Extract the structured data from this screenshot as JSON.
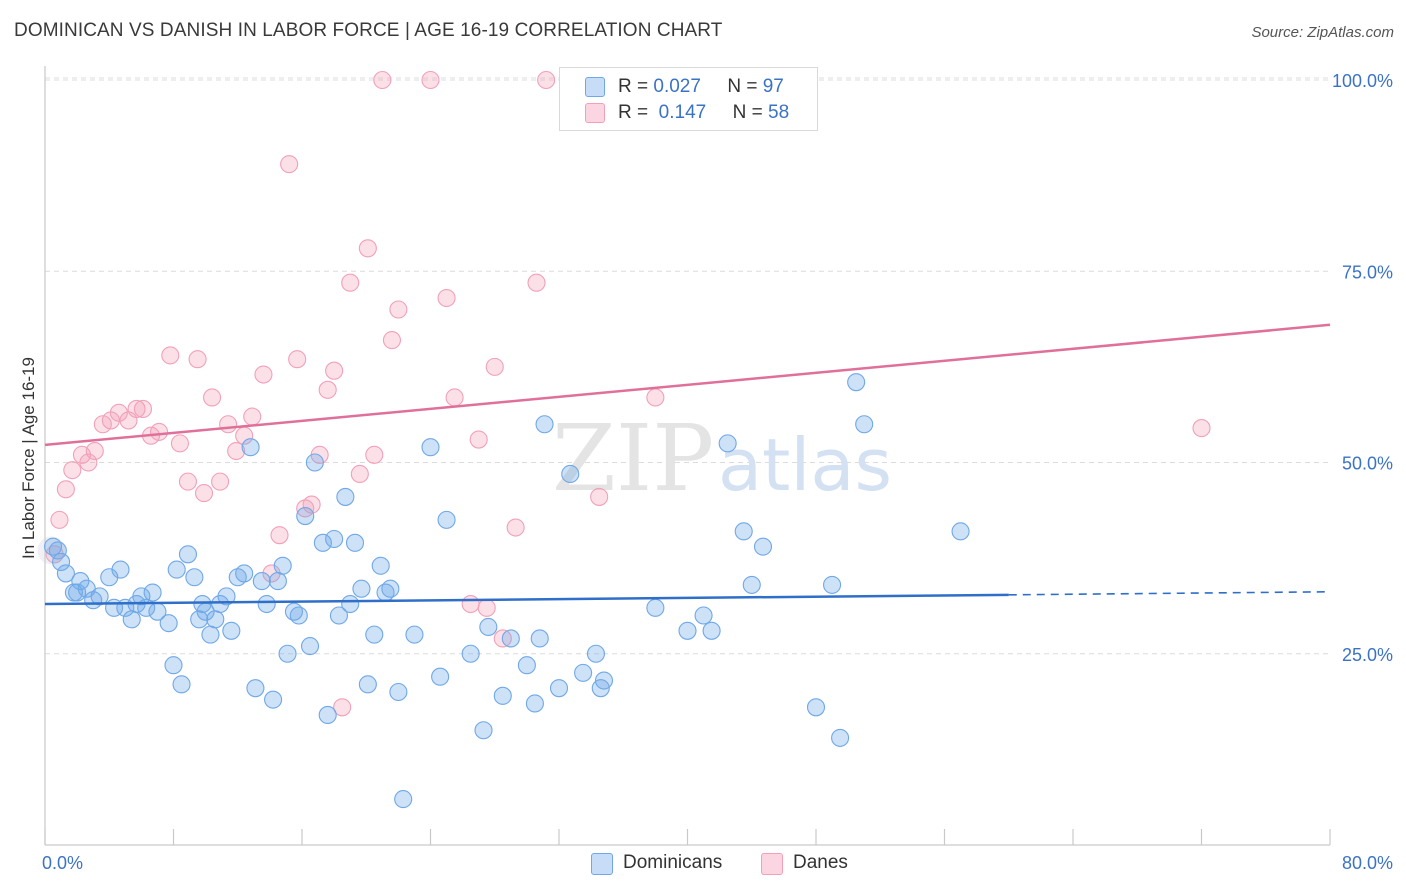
{
  "header": {
    "title": "DOMINICAN VS DANISH IN LABOR FORCE | AGE 16-19 CORRELATION CHART",
    "source": "Source: ZipAtlas.com"
  },
  "watermark": {
    "zip": "ZIP",
    "atlas": "atlas"
  },
  "legend": {
    "dominicans": {
      "r_label": "R =",
      "r_value": "0.027",
      "n_label": "N =",
      "n_value": "97",
      "color": "#6fa8e8"
    },
    "danes": {
      "r_label": "R =",
      "r_value": "0.147",
      "n_label": "N =",
      "n_value": "58",
      "color": "#f2a0b8"
    }
  },
  "bottom_legend": {
    "dominicans": "Dominicans",
    "danes": "Danes"
  },
  "chart_data": {
    "type": "scatter",
    "title": "DOMINICAN VS DANISH IN LABOR FORCE | AGE 16-19 CORRELATION CHART",
    "xlabel": "",
    "ylabel": "In Labor Force | Age 16-19",
    "xlim": [
      0,
      80
    ],
    "ylim": [
      0,
      103
    ],
    "x_tick_labels": {
      "min": "0.0%",
      "max": "80.0%"
    },
    "y_ticks": [
      {
        "value": 25,
        "label": "25.0%"
      },
      {
        "value": 50,
        "label": "50.0%"
      },
      {
        "value": 75,
        "label": "75.0%"
      },
      {
        "value": 100,
        "label": "100.0%"
      }
    ],
    "series": [
      {
        "name": "Dominicans",
        "color": "#6fa8e8",
        "line_color": "#2f6fc9",
        "trend": {
          "x0": 0,
          "y0": 31.5,
          "x1": 80,
          "y1": 33.1,
          "solid_until_x": 60
        },
        "points": [
          [
            0.5,
            39
          ],
          [
            0.8,
            38.5
          ],
          [
            1.0,
            37
          ],
          [
            1.3,
            35.5
          ],
          [
            1.8,
            33
          ],
          [
            2.2,
            34.5
          ],
          [
            2.6,
            33.5
          ],
          [
            3.0,
            32
          ],
          [
            3.4,
            32.5
          ],
          [
            4.0,
            35
          ],
          [
            4.3,
            31
          ],
          [
            4.7,
            36
          ],
          [
            5.0,
            31
          ],
          [
            5.4,
            29.5
          ],
          [
            5.7,
            31.5
          ],
          [
            6.0,
            32.5
          ],
          [
            6.3,
            31
          ],
          [
            6.7,
            33
          ],
          [
            7.0,
            30.5
          ],
          [
            7.7,
            29
          ],
          [
            8.0,
            23.5
          ],
          [
            8.2,
            36
          ],
          [
            8.5,
            21
          ],
          [
            8.9,
            38
          ],
          [
            9.3,
            35
          ],
          [
            9.6,
            29.5
          ],
          [
            10.0,
            30.5
          ],
          [
            10.3,
            27.5
          ],
          [
            10.6,
            29.5
          ],
          [
            10.9,
            31.5
          ],
          [
            11.3,
            32.5
          ],
          [
            11.6,
            28
          ],
          [
            12.0,
            35
          ],
          [
            12.4,
            35.5
          ],
          [
            12.8,
            52
          ],
          [
            13.1,
            20.5
          ],
          [
            13.5,
            34.5
          ],
          [
            13.8,
            31.5
          ],
          [
            14.2,
            19
          ],
          [
            14.5,
            34.5
          ],
          [
            14.8,
            36.5
          ],
          [
            15.1,
            25
          ],
          [
            15.5,
            30.5
          ],
          [
            15.8,
            30
          ],
          [
            16.2,
            43
          ],
          [
            16.5,
            26
          ],
          [
            16.8,
            50
          ],
          [
            17.3,
            39.5
          ],
          [
            17.6,
            17
          ],
          [
            18.0,
            40
          ],
          [
            18.3,
            30
          ],
          [
            18.7,
            45.5
          ],
          [
            19.0,
            31.5
          ],
          [
            19.3,
            39.5
          ],
          [
            19.7,
            33.5
          ],
          [
            20.1,
            21
          ],
          [
            20.5,
            27.5
          ],
          [
            20.9,
            36.5
          ],
          [
            21.2,
            33
          ],
          [
            21.5,
            33.5
          ],
          [
            22.0,
            20
          ],
          [
            22.3,
            6
          ],
          [
            23.0,
            27.5
          ],
          [
            24.0,
            52
          ],
          [
            24.6,
            22
          ],
          [
            25.0,
            42.5
          ],
          [
            26.5,
            25
          ],
          [
            27.3,
            15
          ],
          [
            27.6,
            28.5
          ],
          [
            28.5,
            19.5
          ],
          [
            29.0,
            27
          ],
          [
            30.0,
            23.5
          ],
          [
            30.5,
            18.5
          ],
          [
            30.8,
            27
          ],
          [
            31.1,
            55
          ],
          [
            32.0,
            20.5
          ],
          [
            32.7,
            48.5
          ],
          [
            33.5,
            22.5
          ],
          [
            34.3,
            25
          ],
          [
            34.6,
            20.5
          ],
          [
            34.8,
            21.5
          ],
          [
            38.0,
            31
          ],
          [
            40.0,
            28
          ],
          [
            41.0,
            30
          ],
          [
            41.5,
            28
          ],
          [
            42.5,
            52.5
          ],
          [
            43.5,
            41
          ],
          [
            44.0,
            34
          ],
          [
            44.7,
            39
          ],
          [
            48.0,
            18
          ],
          [
            49.0,
            34
          ],
          [
            49.5,
            14
          ],
          [
            50.5,
            60.5
          ],
          [
            51.0,
            55
          ],
          [
            57.0,
            41
          ],
          [
            9.8,
            31.5
          ],
          [
            2.0,
            33
          ]
        ]
      },
      {
        "name": "Danes",
        "color": "#f2a0b8",
        "line_color": "#e0709a",
        "trend": {
          "x0": 0,
          "y0": 52.3,
          "x1": 80,
          "y1": 68
        },
        "points": [
          [
            0.6,
            38
          ],
          [
            0.9,
            42.5
          ],
          [
            1.3,
            46.5
          ],
          [
            1.7,
            49
          ],
          [
            2.3,
            51
          ],
          [
            2.7,
            50
          ],
          [
            3.1,
            51.5
          ],
          [
            3.6,
            55
          ],
          [
            4.1,
            55.5
          ],
          [
            4.6,
            56.5
          ],
          [
            5.2,
            55.5
          ],
          [
            5.7,
            57
          ],
          [
            6.1,
            57
          ],
          [
            6.6,
            53.5
          ],
          [
            7.1,
            54
          ],
          [
            7.8,
            64
          ],
          [
            8.4,
            52.5
          ],
          [
            8.9,
            47.5
          ],
          [
            9.5,
            63.5
          ],
          [
            9.9,
            46
          ],
          [
            10.4,
            58.5
          ],
          [
            10.9,
            47.5
          ],
          [
            11.4,
            55
          ],
          [
            11.9,
            51.5
          ],
          [
            12.4,
            53.5
          ],
          [
            12.9,
            56
          ],
          [
            13.6,
            61.5
          ],
          [
            14.1,
            35.5
          ],
          [
            14.6,
            40.5
          ],
          [
            15.2,
            89
          ],
          [
            15.7,
            63.5
          ],
          [
            16.2,
            44
          ],
          [
            16.6,
            44.5
          ],
          [
            17.1,
            51
          ],
          [
            17.6,
            59.5
          ],
          [
            18.0,
            62
          ],
          [
            18.5,
            18
          ],
          [
            19.0,
            73.5
          ],
          [
            19.6,
            48.5
          ],
          [
            20.1,
            78
          ],
          [
            20.5,
            51
          ],
          [
            21.0,
            100
          ],
          [
            21.6,
            66
          ],
          [
            22.0,
            70
          ],
          [
            24.0,
            100
          ],
          [
            25.0,
            71.5
          ],
          [
            25.5,
            58.5
          ],
          [
            26.5,
            31.5
          ],
          [
            27.0,
            53
          ],
          [
            27.5,
            31
          ],
          [
            28.0,
            62.5
          ],
          [
            28.5,
            27
          ],
          [
            29.3,
            41.5
          ],
          [
            30.6,
            73.5
          ],
          [
            31.2,
            100
          ],
          [
            34.5,
            45.5
          ],
          [
            38.0,
            58.5
          ],
          [
            72.0,
            54.5
          ]
        ]
      }
    ]
  }
}
